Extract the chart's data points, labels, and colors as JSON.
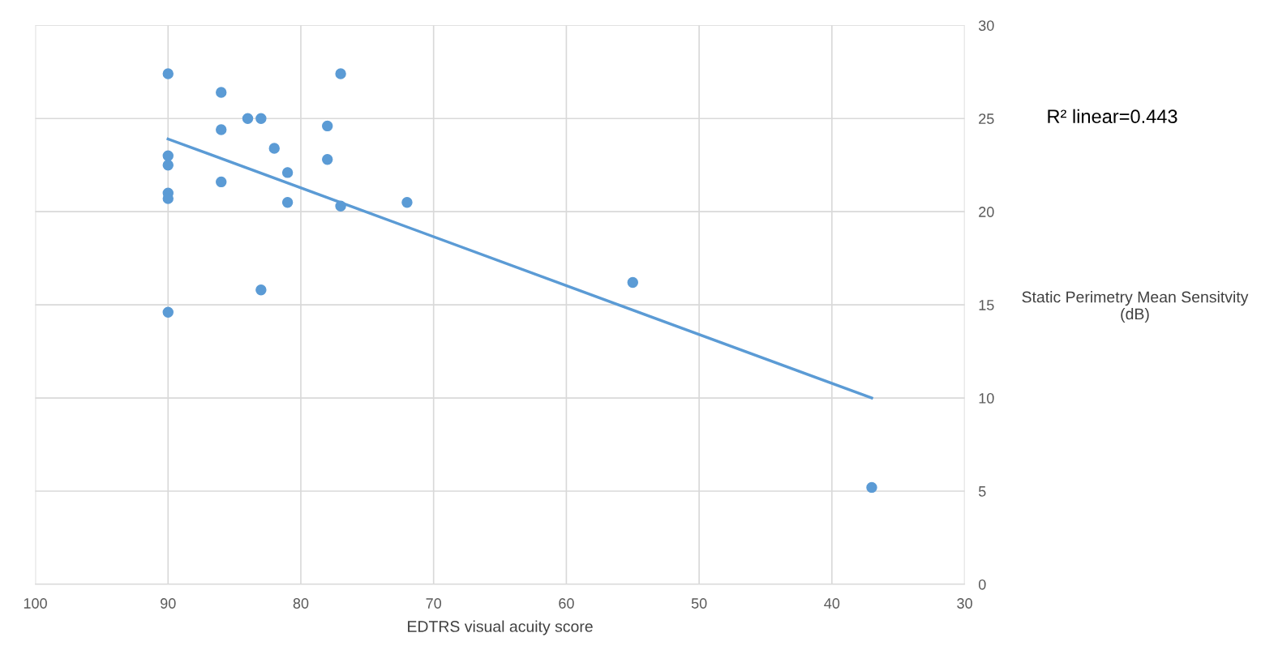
{
  "chart_data": {
    "type": "scatter",
    "xlabel": "EDTRS visual acuity score",
    "ylabel": "Static Perimetry Mean Sensitvity (dB)",
    "xlim": [
      100,
      30
    ],
    "xticks": [
      100,
      90,
      80,
      70,
      60,
      50,
      40,
      30
    ],
    "ylim": [
      0,
      30
    ],
    "yticks": [
      0,
      5,
      10,
      15,
      20,
      25,
      30
    ],
    "grid": true,
    "series": [
      {
        "color": "#5b9bd5",
        "marker": "circle",
        "x": [
          90,
          86,
          84,
          83,
          86,
          82,
          90,
          90,
          81,
          86,
          90,
          90,
          81,
          77,
          78,
          78,
          77,
          72,
          83,
          90,
          55,
          37
        ],
        "values": [
          27.4,
          26.4,
          25.0,
          25.0,
          24.4,
          23.4,
          23.0,
          22.5,
          22.1,
          21.6,
          21.0,
          20.7,
          20.5,
          27.4,
          24.6,
          22.8,
          20.3,
          20.5,
          15.8,
          14.6,
          16.2,
          5.2
        ]
      },
      {
        "type": "line",
        "color": "#5b9bd5",
        "x": [
          90,
          37
        ],
        "values": [
          23.9,
          10.0
        ]
      }
    ],
    "annotations": [
      "R² linear=0.443"
    ]
  }
}
